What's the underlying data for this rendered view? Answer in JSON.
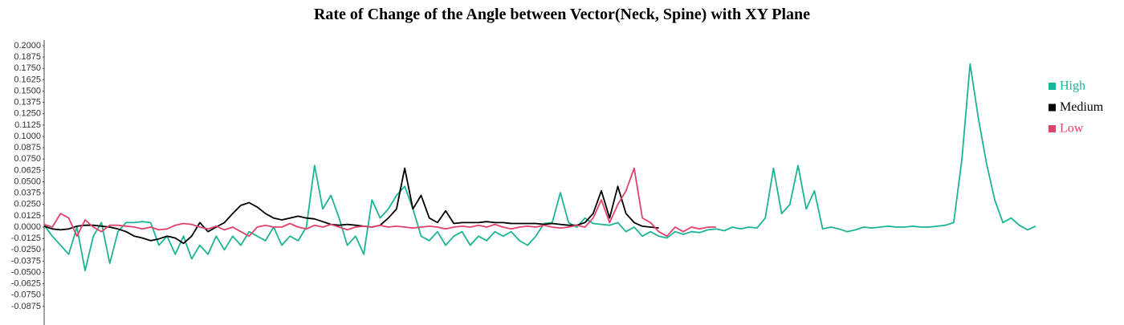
{
  "chart_data": {
    "type": "line",
    "title": "Rate of Change of the Angle between Vector(Neck, Spine) with XY Plane",
    "ylim": [
      -0.1,
      0.2
    ],
    "yticks": [
      {
        "value": -0.0875,
        "label": "-0.0875"
      },
      {
        "value": -0.075,
        "label": "-0.0750"
      },
      {
        "value": -0.0625,
        "label": "-0.0625"
      },
      {
        "value": -0.05,
        "label": "-0.0500"
      },
      {
        "value": -0.0375,
        "label": "-0.0375"
      },
      {
        "value": -0.025,
        "label": "-0.0250"
      },
      {
        "value": -0.0125,
        "label": "-0.0125"
      },
      {
        "value": 0,
        "label": "0.0000"
      },
      {
        "value": 0.0125,
        "label": "0.0125"
      },
      {
        "value": 0.025,
        "label": "0.0250"
      },
      {
        "value": 0.0375,
        "label": "0.0375"
      },
      {
        "value": 0.05,
        "label": "0.0500"
      },
      {
        "value": 0.0625,
        "label": "0.0625"
      },
      {
        "value": 0.075,
        "label": "0.0750"
      },
      {
        "value": 0.0875,
        "label": "0.0875"
      },
      {
        "value": 0.1,
        "label": "0.1000"
      },
      {
        "value": 0.1125,
        "label": "0.1125"
      },
      {
        "value": 0.125,
        "label": "0.1250"
      },
      {
        "value": 0.1375,
        "label": "0.1375"
      },
      {
        "value": 0.15,
        "label": "0.1500"
      },
      {
        "value": 0.1625,
        "label": "0.1625"
      },
      {
        "value": 0.175,
        "label": "0.1750"
      },
      {
        "value": 0.1875,
        "label": "0.1875"
      },
      {
        "value": 0.2,
        "label": "0.2000"
      }
    ],
    "legend": "right",
    "series": [
      {
        "name": "High",
        "color": "#1db495",
        "values": [
          0.002,
          -0.01,
          -0.02,
          -0.03,
          0.0,
          -0.048,
          -0.01,
          0.005,
          -0.04,
          -0.005,
          0.005,
          0.005,
          0.006,
          0.005,
          -0.02,
          -0.01,
          -0.03,
          -0.01,
          -0.035,
          -0.02,
          -0.03,
          -0.01,
          -0.025,
          -0.01,
          -0.02,
          -0.005,
          -0.01,
          -0.015,
          0.0,
          -0.02,
          -0.01,
          -0.015,
          0.0,
          0.068,
          0.02,
          0.035,
          0.01,
          -0.02,
          -0.01,
          -0.03,
          0.03,
          0.01,
          0.02,
          0.035,
          0.045,
          0.02,
          -0.01,
          -0.015,
          -0.005,
          -0.02,
          -0.01,
          -0.005,
          -0.02,
          -0.01,
          -0.015,
          -0.005,
          -0.01,
          -0.005,
          -0.015,
          -0.02,
          -0.01,
          0.004,
          0.005,
          0.038,
          0.005,
          0.0,
          0.01,
          0.004,
          0.003,
          0.002,
          0.005,
          -0.005,
          0.0,
          -0.01,
          -0.005,
          -0.01,
          -0.012,
          -0.005,
          -0.008,
          -0.005,
          -0.006,
          -0.003,
          -0.002,
          -0.004,
          0.0,
          -0.002,
          0.0,
          -0.001,
          0.01,
          0.065,
          0.015,
          0.025,
          0.068,
          0.02,
          0.04,
          -0.002,
          0.0,
          -0.002,
          -0.005,
          -0.003,
          0.0,
          -0.001,
          0.0,
          0.001,
          0.0,
          0.0,
          0.001,
          0.0,
          0.0,
          0.001,
          0.002,
          0.005,
          0.075,
          0.18,
          0.12,
          0.07,
          0.03,
          0.005,
          0.01,
          0.002,
          -0.003,
          0.001
        ]
      },
      {
        "name": "Medium",
        "color": "#000000",
        "values": [
          0.001,
          -0.002,
          -0.003,
          -0.002,
          0.001,
          0.002,
          0.002,
          0.001,
          0.0,
          -0.002,
          -0.005,
          -0.01,
          -0.012,
          -0.015,
          -0.013,
          -0.01,
          -0.012,
          -0.018,
          -0.01,
          0.005,
          -0.005,
          0.0,
          0.005,
          0.015,
          0.024,
          0.027,
          0.022,
          0.015,
          0.01,
          0.008,
          0.01,
          0.012,
          0.01,
          0.009,
          0.006,
          0.003,
          0.002,
          0.003,
          0.002,
          0.001,
          0.0,
          0.002,
          0.01,
          0.02,
          0.065,
          0.02,
          0.035,
          0.01,
          0.005,
          0.018,
          0.004,
          0.005,
          0.005,
          0.005,
          0.006,
          0.005,
          0.005,
          0.004,
          0.004,
          0.004,
          0.004,
          0.003,
          0.004,
          0.003,
          0.002,
          0.002,
          0.005,
          0.015,
          0.04,
          0.01,
          0.045,
          0.015,
          0.005,
          0.001,
          0.0,
          -0.001
        ]
      },
      {
        "name": "Low",
        "color": "#e0436a",
        "values": [
          0.003,
          0.0,
          0.015,
          0.01,
          -0.01,
          0.008,
          0.0,
          -0.005,
          0.002,
          0.002,
          0.001,
          0.0,
          -0.002,
          0.0,
          -0.003,
          -0.002,
          0.002,
          0.004,
          0.003,
          0.0,
          -0.002,
          0.001,
          -0.003,
          0.0,
          -0.005,
          -0.01,
          0.0,
          0.002,
          0.0,
          0.0,
          0.004,
          0.0,
          -0.002,
          0.002,
          0.0,
          0.003,
          0.0,
          -0.003,
          0.0,
          0.001,
          0.0,
          0.002,
          0.0,
          0.001,
          0.0,
          -0.001,
          0.0,
          0.001,
          0.0,
          -0.002,
          0.0,
          0.001,
          0.0,
          0.002,
          0.0,
          0.003,
          0.0,
          -0.002,
          0.0,
          0.001,
          0.0,
          0.002,
          0.0,
          -0.001,
          0.0,
          0.002,
          0.0,
          0.01,
          0.03,
          0.005,
          0.025,
          0.04,
          0.065,
          0.01,
          0.005,
          -0.005,
          -0.01,
          0.0,
          -0.005,
          0.0,
          -0.002,
          0.0,
          0.0
        ]
      }
    ]
  }
}
